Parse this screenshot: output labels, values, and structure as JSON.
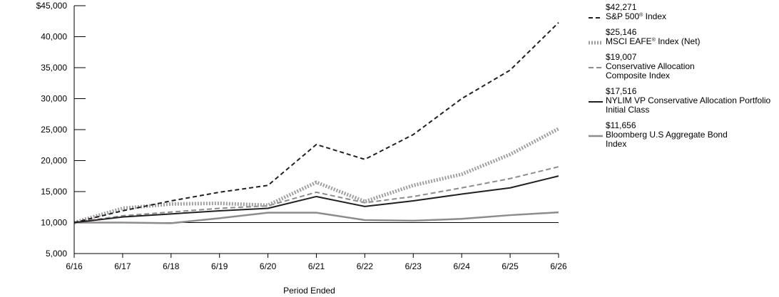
{
  "chart_data": {
    "type": "line",
    "title": "",
    "xlabel": "Period Ended",
    "ylabel": "",
    "categories": [
      "6/16",
      "6/17",
      "6/18",
      "6/19",
      "6/20",
      "6/21",
      "6/22",
      "6/23",
      "6/24",
      "6/25",
      "6/26"
    ],
    "ylim": [
      5000,
      45000
    ],
    "yticks": [
      5000,
      10000,
      15000,
      20000,
      25000,
      30000,
      35000,
      40000,
      45000
    ],
    "ytick_labels": [
      "5,000",
      "10,000",
      "15,000",
      "20,000",
      "25,000",
      "30,000",
      "35,000",
      "40,000",
      "$45,000"
    ],
    "grid": false,
    "legend_position": "right",
    "series": [
      {
        "name": "S&P 500® Index",
        "name_main": "S&P 500",
        "name_sup": "®",
        "name_rest": " Index",
        "end_label": "$42,271",
        "style": "dashed",
        "color": "#231f20",
        "values": [
          10000,
          11900,
          13500,
          14900,
          16000,
          22600,
          20200,
          24200,
          30000,
          34600,
          42271
        ]
      },
      {
        "name": "MSCI EAFE® Index (Net)",
        "name_main": "MSCI EAFE",
        "name_sup": "®",
        "name_rest": " Index (Net)",
        "end_label": "$25,146",
        "style": "dotted",
        "color": "#a0a0a0",
        "values": [
          10000,
          12300,
          13000,
          13100,
          12800,
          16500,
          13400,
          16000,
          17800,
          21000,
          25146
        ]
      },
      {
        "name": "Conservative Allocation Composite Index",
        "name_main": "Conservative Allocation Composite Index",
        "end_label": "$19,007",
        "style": "dashed-gray",
        "color": "#8c8c8c",
        "values": [
          10000,
          11100,
          11700,
          12300,
          12700,
          14900,
          13200,
          14200,
          15600,
          17100,
          19007
        ]
      },
      {
        "name": "NYLIM VP Conservative Allocation Portfolio Initial Class",
        "name_main": "NYLIM VP Conservative Allocation Portfolio Initial Class",
        "end_label": "$17,516",
        "style": "solid",
        "color": "#231f20",
        "values": [
          10000,
          10900,
          11400,
          11900,
          12300,
          14200,
          12600,
          13500,
          14600,
          15600,
          17516
        ]
      },
      {
        "name": "Bloomberg U.S Aggregate Bond Index",
        "name_main": "Bloomberg U.S Aggregate Bond Index",
        "end_label": "$11,656",
        "style": "solid-gray",
        "color": "#8c8c8c",
        "values": [
          10000,
          10000,
          9900,
          10700,
          11600,
          11600,
          10400,
          10300,
          10600,
          11200,
          11656
        ]
      }
    ],
    "baseline": 10000
  }
}
